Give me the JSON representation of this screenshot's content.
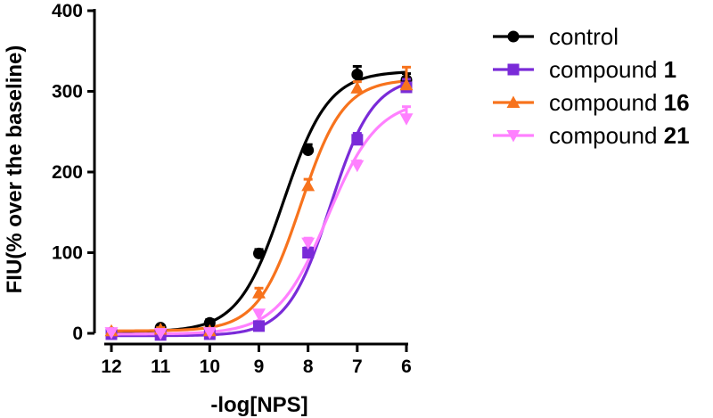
{
  "chart_data": {
    "type": "line",
    "title": "",
    "xlabel": "-log[NPS]",
    "ylabel": "FIU(% over the baseline)",
    "x": [
      12,
      11,
      10,
      9,
      8,
      7,
      6
    ],
    "xlim": [
      12,
      6
    ],
    "xticks": [
      "12",
      "11",
      "10",
      "9",
      "8",
      "7",
      "6"
    ],
    "ylim": [
      0,
      400
    ],
    "yticks": [
      "0",
      "100",
      "200",
      "300",
      "400"
    ],
    "grid": false,
    "legend_position": "right",
    "series": [
      {
        "name": "control",
        "name_suffix": "",
        "marker": "circle",
        "color": "#000000",
        "values": [
          1,
          7,
          13,
          99,
          227,
          321,
          314
        ],
        "errors": [
          3,
          3,
          4,
          5,
          7,
          10,
          8
        ],
        "fit": {
          "bottom": 2,
          "top": 325,
          "ec50": 8.5,
          "hill": 0.95
        }
      },
      {
        "name": "compound ",
        "name_suffix": "1",
        "marker": "square",
        "color": "#7a2bd8",
        "values": [
          -1,
          -2,
          -1,
          9,
          100,
          240,
          305
        ],
        "errors": [
          2,
          2,
          2,
          3,
          6,
          8,
          10
        ],
        "fit": {
          "bottom": -3,
          "top": 318,
          "ec50": 7.55,
          "hill": 1.0
        }
      },
      {
        "name": "compound ",
        "name_suffix": "16",
        "marker": "triangle-up",
        "color": "#f7731d",
        "values": [
          3,
          5,
          3,
          50,
          183,
          304,
          308
        ],
        "errors": [
          2,
          2,
          3,
          6,
          8,
          8,
          22
        ],
        "fit": {
          "bottom": 3,
          "top": 315,
          "ec50": 8.15,
          "hill": 1.0
        }
      },
      {
        "name": "compound ",
        "name_suffix": "21",
        "marker": "triangle-down",
        "color": "#ff80ff",
        "values": [
          1,
          0,
          1,
          24,
          112,
          208,
          266
        ],
        "errors": [
          2,
          2,
          2,
          4,
          6,
          6,
          15
        ],
        "fit": {
          "bottom": -1,
          "top": 290,
          "ec50": 7.6,
          "hill": 0.85
        }
      }
    ]
  }
}
